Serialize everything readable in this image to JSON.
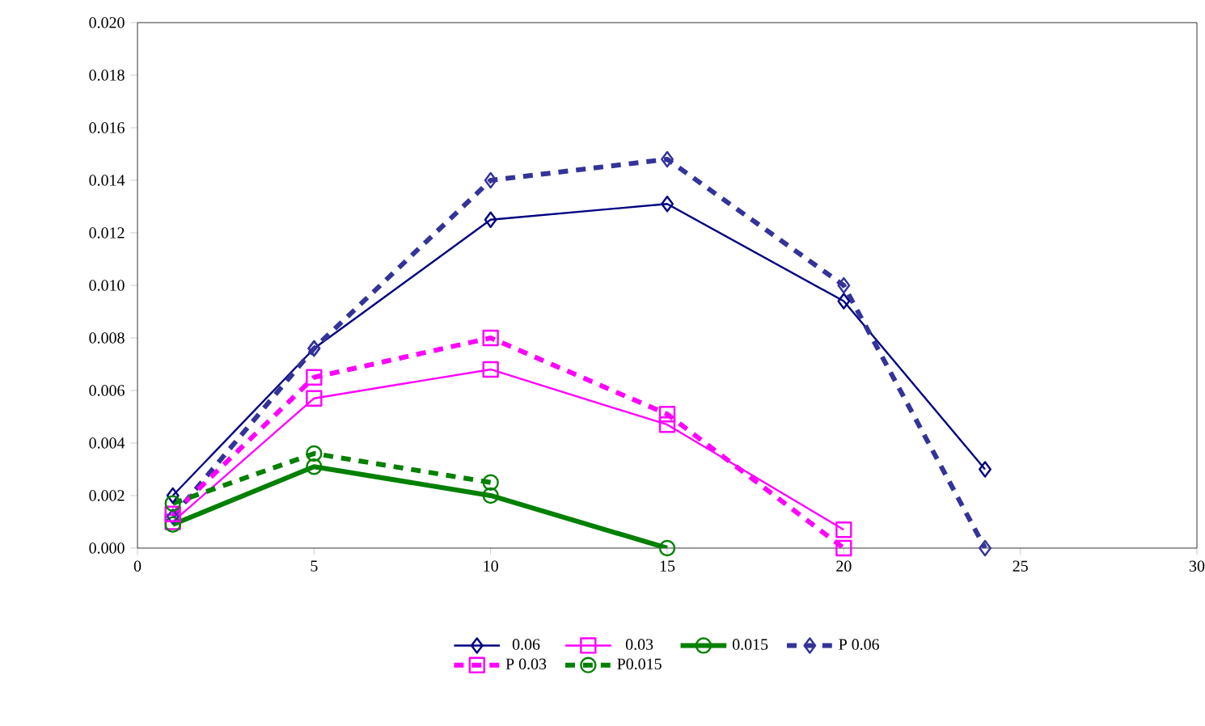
{
  "chart_data": {
    "type": "line",
    "xlim": [
      0,
      30
    ],
    "xticks": [
      0,
      5,
      10,
      15,
      20,
      25,
      30
    ],
    "ylim": [
      0,
      0.02
    ],
    "yticks": [
      {
        "value": 0,
        "label": "0.000"
      },
      {
        "value": 0.002,
        "label": "0.002"
      },
      {
        "value": 0.004,
        "label": "0.004"
      },
      {
        "value": 0.006,
        "label": "0.006"
      },
      {
        "value": 0.008,
        "label": "0.008"
      },
      {
        "value": 0.01,
        "label": "0.010"
      },
      {
        "value": 0.012,
        "label": "0.012"
      },
      {
        "value": 0.014,
        "label": "0.014"
      },
      {
        "value": 0.016,
        "label": "0.016"
      },
      {
        "value": 0.018,
        "label": "0.018"
      },
      {
        "value": 0.02,
        "label": "0.020"
      }
    ],
    "legend": "bottom",
    "grid": false,
    "series": [
      {
        "name": "0.06",
        "color": "#000080",
        "marker": "diamond",
        "line_style": "solid",
        "x": [
          1,
          5,
          10,
          15,
          20,
          24
        ],
        "values": [
          0.002,
          0.0076,
          0.0125,
          0.0131,
          0.0094,
          0.003
        ]
      },
      {
        "name": "0.03",
        "color": "#ff00ff",
        "marker": "square",
        "line_style": "solid",
        "x": [
          1,
          5,
          10,
          15,
          20
        ],
        "values": [
          0.001,
          0.0057,
          0.0068,
          0.0047,
          0.0007
        ]
      },
      {
        "name": "0.015",
        "color": "#008000",
        "marker": "circle",
        "line_style": "solid",
        "x": [
          1,
          5,
          10,
          15
        ],
        "values": [
          0.0009,
          0.0031,
          0.002,
          0.0
        ]
      },
      {
        "name": "P 0.06",
        "color": "#333399",
        "marker": "diamond",
        "line_style": "dashed",
        "x": [
          1,
          5,
          10,
          15,
          20,
          24
        ],
        "values": [
          0.0012,
          0.0076,
          0.014,
          0.0148,
          0.01,
          0.0
        ]
      },
      {
        "name": "P 0.03",
        "color": "#ff00ff",
        "marker": "square",
        "line_style": "dashed",
        "x": [
          1,
          5,
          10,
          15,
          20
        ],
        "values": [
          0.0013,
          0.0065,
          0.008,
          0.0051,
          0.0
        ]
      },
      {
        "name": "P0.015",
        "color": "#008000",
        "marker": "circle",
        "line_style": "dashed",
        "x": [
          1,
          5,
          10
        ],
        "values": [
          0.0017,
          0.0036,
          0.0025
        ]
      }
    ]
  }
}
